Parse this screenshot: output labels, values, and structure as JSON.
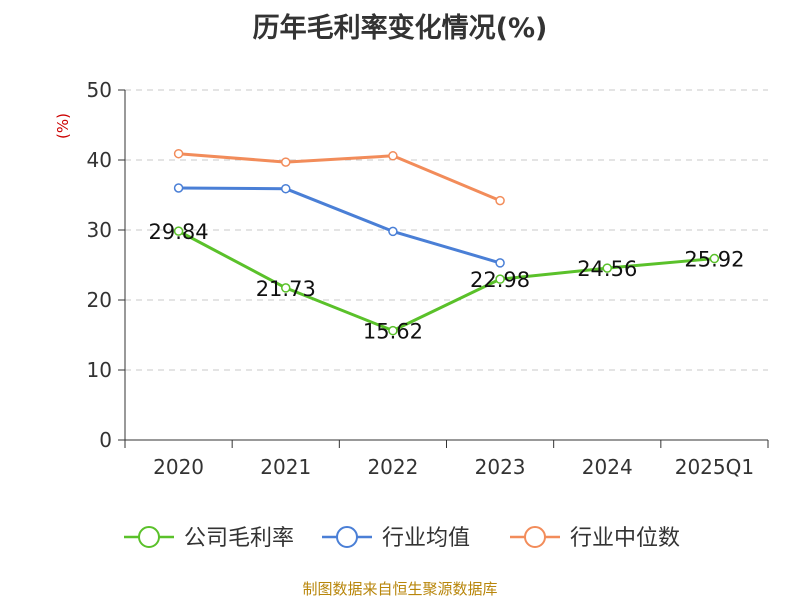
{
  "chart_data": {
    "type": "line",
    "title": "历年毛利率变化情况(%)",
    "ylabel": "(%)",
    "categories": [
      "2020",
      "2021",
      "2022",
      "2023",
      "2024",
      "2025Q1"
    ],
    "ylim": [
      0,
      50
    ],
    "yticks": [
      0,
      10,
      20,
      30,
      40,
      50
    ],
    "grid": true,
    "legend_position": "bottom",
    "series": [
      {
        "name": "公司毛利率",
        "color": "#5ac12a",
        "labels": true,
        "values": [
          29.84,
          21.73,
          15.62,
          22.98,
          24.56,
          25.92
        ]
      },
      {
        "name": "行业均值",
        "color": "#4a7fd6",
        "labels": false,
        "values": [
          36.0,
          35.9,
          29.8,
          25.3,
          null,
          null
        ]
      },
      {
        "name": "行业中位数",
        "color": "#f28c5a",
        "labels": false,
        "values": [
          40.9,
          39.7,
          40.6,
          34.2,
          null,
          null
        ]
      }
    ]
  },
  "source_note": "制图数据来自恒生聚源数据库"
}
